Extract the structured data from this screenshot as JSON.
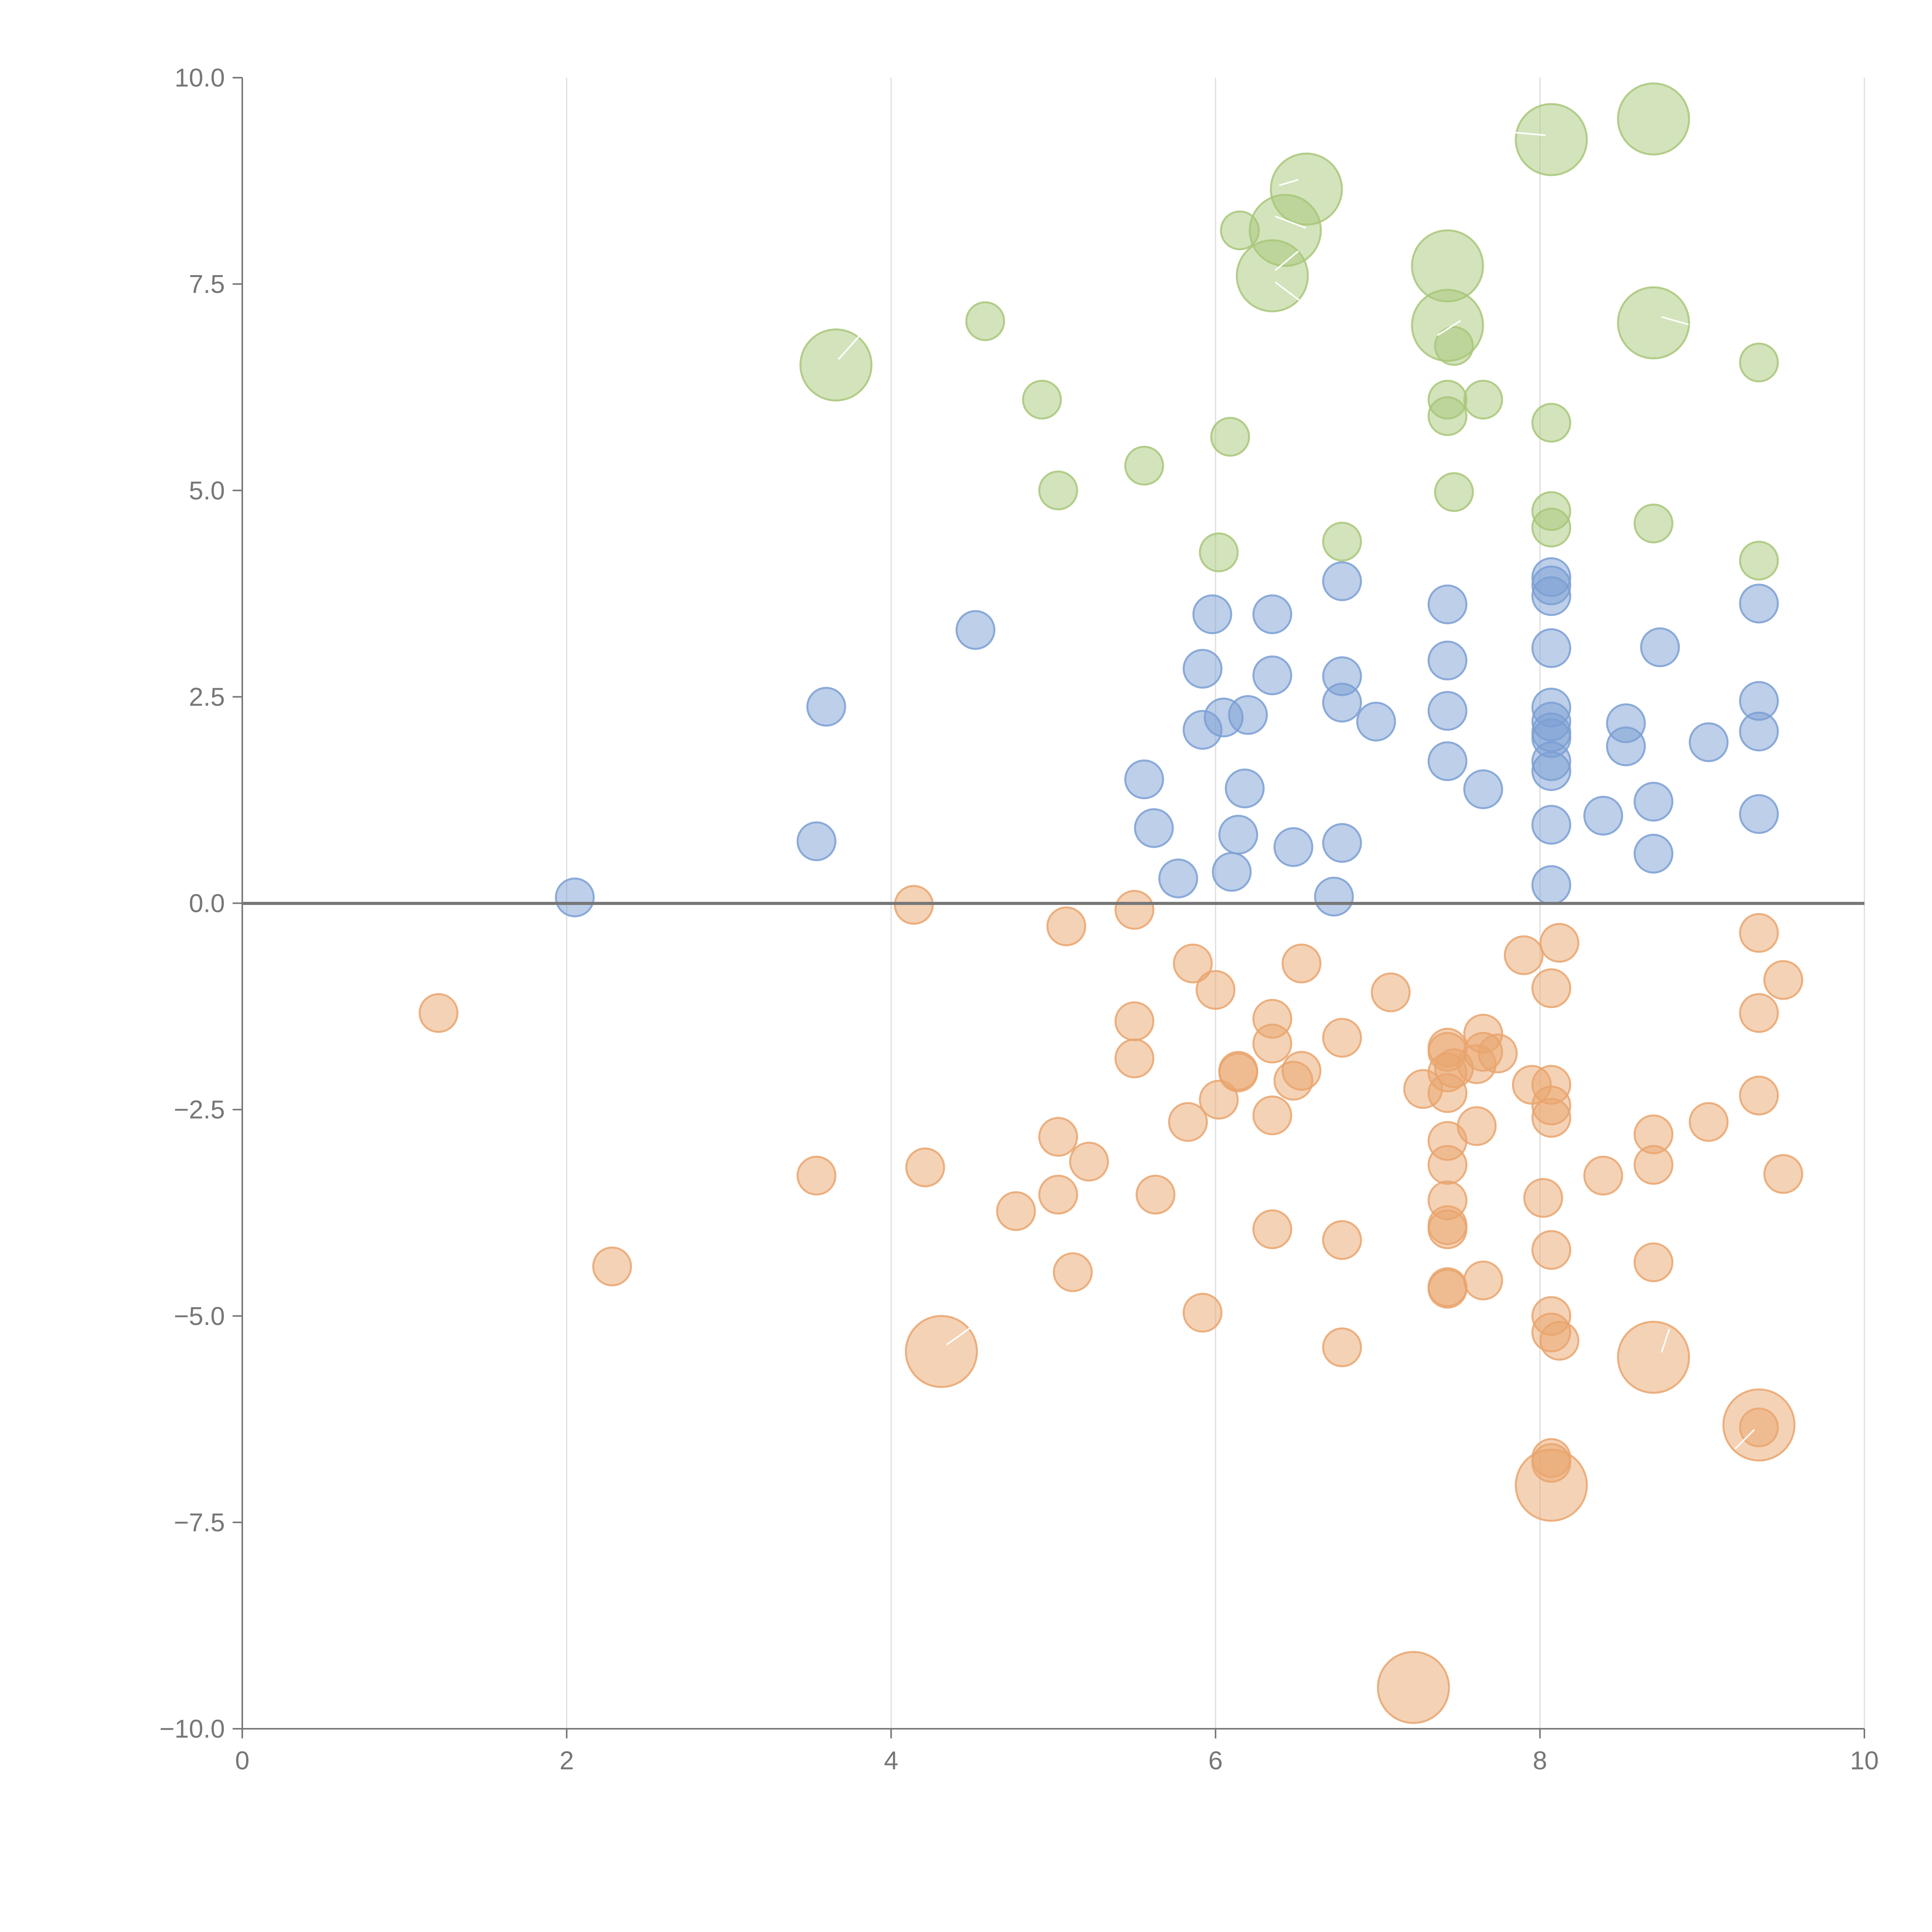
{
  "chart_data": {
    "type": "scatter",
    "title": "",
    "xlabel": "",
    "ylabel": "",
    "xlim": [
      0,
      10
    ],
    "ylim": [
      -10,
      10
    ],
    "x_ticks": [
      0,
      2,
      4,
      6,
      8,
      10
    ],
    "y_ticks": [
      -10,
      -7.5,
      -5,
      -2.5,
      0,
      2.5,
      5,
      7.5,
      10
    ],
    "x_tick_labels": [
      "0",
      "2",
      "4",
      "6",
      "8",
      "10"
    ],
    "y_tick_labels": [
      "−10.0",
      "−7.5",
      "−5.0",
      "−2.5",
      "0.0",
      "2.5",
      "5.0",
      "7.5",
      "10.0"
    ],
    "grid": "vertical",
    "colors": {
      "green": "#a8c779",
      "blue": "#7b9fd3",
      "orange": "#e9a56d",
      "axis": "#777777",
      "grid": "#dddddd",
      "zero_line": "#777777"
    },
    "series": [
      {
        "name": "green",
        "color": "#a8c779",
        "points": [
          [
            8.07,
            9.25,
            2
          ],
          [
            8.7,
            9.5,
            2
          ],
          [
            6.56,
            8.65,
            2
          ],
          [
            6.43,
            8.15,
            2
          ],
          [
            6.15,
            8.15,
            1
          ],
          [
            6.35,
            7.6,
            2
          ],
          [
            7.43,
            7.72,
            2
          ],
          [
            7.43,
            7.0,
            2
          ],
          [
            8.7,
            7.03,
            2
          ],
          [
            3.66,
            6.52,
            2
          ],
          [
            4.58,
            7.05,
            1
          ],
          [
            7.47,
            6.75,
            1
          ],
          [
            9.35,
            6.55,
            1
          ],
          [
            4.93,
            6.1,
            1
          ],
          [
            7.43,
            6.1,
            1
          ],
          [
            7.65,
            6.1,
            1
          ],
          [
            7.43,
            5.9,
            1
          ],
          [
            6.09,
            5.65,
            1
          ],
          [
            8.07,
            5.82,
            1
          ],
          [
            5.56,
            5.3,
            1
          ],
          [
            5.03,
            5.0,
            1
          ],
          [
            7.47,
            4.98,
            1
          ],
          [
            8.07,
            4.75,
            1
          ],
          [
            8.07,
            4.55,
            1
          ],
          [
            8.7,
            4.6,
            1
          ],
          [
            9.35,
            4.15,
            1
          ],
          [
            6.02,
            4.25,
            1
          ],
          [
            6.78,
            4.38,
            1
          ]
        ]
      },
      {
        "name": "blue",
        "color": "#7b9fd3",
        "points": [
          [
            2.05,
            0.07,
            1
          ],
          [
            3.54,
            0.75,
            1
          ],
          [
            3.6,
            2.38,
            1
          ],
          [
            4.52,
            3.31,
            1
          ],
          [
            5.56,
            1.5,
            1
          ],
          [
            5.62,
            0.91,
            1
          ],
          [
            5.77,
            0.3,
            1
          ],
          [
            5.92,
            2.84,
            1
          ],
          [
            5.98,
            3.5,
            1
          ],
          [
            5.92,
            2.1,
            1
          ],
          [
            6.05,
            2.25,
            1
          ],
          [
            6.2,
            2.28,
            1
          ],
          [
            6.18,
            1.39,
            1
          ],
          [
            6.14,
            0.83,
            1
          ],
          [
            6.1,
            0.38,
            1
          ],
          [
            6.35,
            3.5,
            1
          ],
          [
            6.35,
            2.76,
            1
          ],
          [
            6.48,
            0.68,
            1
          ],
          [
            6.78,
            3.9,
            1
          ],
          [
            6.78,
            2.75,
            1
          ],
          [
            6.78,
            2.43,
            1
          ],
          [
            6.78,
            0.73,
            1
          ],
          [
            6.73,
            0.08,
            1
          ],
          [
            6.99,
            2.2,
            1
          ],
          [
            7.43,
            3.62,
            1
          ],
          [
            7.43,
            2.94,
            1
          ],
          [
            7.43,
            2.33,
            1
          ],
          [
            7.43,
            1.72,
            1
          ],
          [
            7.65,
            1.38,
            1
          ],
          [
            8.07,
            3.95,
            1
          ],
          [
            8.07,
            3.85,
            1
          ],
          [
            8.07,
            3.72,
            1
          ],
          [
            8.07,
            3.09,
            1
          ],
          [
            8.07,
            2.37,
            1
          ],
          [
            8.07,
            2.2,
            1
          ],
          [
            8.07,
            2.07,
            1
          ],
          [
            8.07,
            2.0,
            1
          ],
          [
            8.07,
            1.72,
            1
          ],
          [
            8.07,
            1.6,
            1
          ],
          [
            8.07,
            0.95,
            1
          ],
          [
            8.07,
            0.22,
            1
          ],
          [
            8.39,
            1.06,
            1
          ],
          [
            8.53,
            2.18,
            1
          ],
          [
            8.53,
            1.9,
            1
          ],
          [
            8.74,
            3.1,
            1
          ],
          [
            8.7,
            1.23,
            1
          ],
          [
            8.7,
            0.6,
            1
          ],
          [
            9.04,
            1.95,
            1
          ],
          [
            9.35,
            3.63,
            1
          ],
          [
            9.35,
            2.45,
            1
          ],
          [
            9.35,
            2.08,
            1
          ],
          [
            9.35,
            1.08,
            1
          ]
        ]
      },
      {
        "name": "orange",
        "color": "#e9a56d",
        "points": [
          [
            1.21,
            -1.33,
            1
          ],
          [
            2.28,
            -4.4,
            1
          ],
          [
            3.54,
            -3.3,
            1
          ],
          [
            4.14,
            -0.02,
            1
          ],
          [
            4.21,
            -3.2,
            1
          ],
          [
            4.31,
            -5.43,
            2
          ],
          [
            4.77,
            -3.73,
            1
          ],
          [
            5.03,
            -2.83,
            1
          ],
          [
            5.03,
            -3.53,
            1
          ],
          [
            5.08,
            -0.28,
            1
          ],
          [
            5.12,
            -4.47,
            1
          ],
          [
            5.22,
            -3.13,
            1
          ],
          [
            5.5,
            -0.08,
            1
          ],
          [
            5.5,
            -1.43,
            1
          ],
          [
            5.5,
            -1.88,
            1
          ],
          [
            5.63,
            -3.53,
            1
          ],
          [
            5.86,
            -0.73,
            1
          ],
          [
            5.83,
            -2.65,
            1
          ],
          [
            5.92,
            -4.96,
            1
          ],
          [
            6.0,
            -1.05,
            1
          ],
          [
            6.02,
            -2.38,
            1
          ],
          [
            6.14,
            -2.03,
            1
          ],
          [
            6.14,
            -2.05,
            1
          ],
          [
            6.35,
            -1.4,
            1
          ],
          [
            6.35,
            -1.7,
            1
          ],
          [
            6.35,
            -2.57,
            1
          ],
          [
            6.35,
            -3.95,
            1
          ],
          [
            6.48,
            -2.15,
            1
          ],
          [
            6.53,
            -0.73,
            1
          ],
          [
            6.53,
            -2.03,
            1
          ],
          [
            6.78,
            -1.63,
            1
          ],
          [
            6.78,
            -4.08,
            1
          ],
          [
            6.78,
            -5.38,
            1
          ],
          [
            7.08,
            -1.08,
            1
          ],
          [
            7.28,
            -2.25,
            1
          ],
          [
            7.22,
            -9.5,
            2
          ],
          [
            7.43,
            -1.75,
            1
          ],
          [
            7.43,
            -1.8,
            1
          ],
          [
            7.43,
            -2.05,
            1
          ],
          [
            7.43,
            -2.3,
            1
          ],
          [
            7.43,
            -2.88,
            1
          ],
          [
            7.43,
            -3.17,
            1
          ],
          [
            7.43,
            -3.6,
            1
          ],
          [
            7.43,
            -3.9,
            1
          ],
          [
            7.43,
            -3.95,
            1
          ],
          [
            7.43,
            -4.65,
            1
          ],
          [
            7.43,
            -4.67,
            1
          ],
          [
            7.47,
            -2.0,
            1
          ],
          [
            7.61,
            -1.95,
            1
          ],
          [
            7.61,
            -2.7,
            1
          ],
          [
            7.65,
            -1.58,
            1
          ],
          [
            7.65,
            -1.8,
            1
          ],
          [
            7.65,
            -4.57,
            1
          ],
          [
            7.74,
            -1.82,
            1
          ],
          [
            7.9,
            -0.63,
            1
          ],
          [
            7.95,
            -2.2,
            1
          ],
          [
            8.02,
            -3.57,
            1
          ],
          [
            8.07,
            -1.03,
            1
          ],
          [
            8.07,
            -2.2,
            1
          ],
          [
            8.07,
            -2.45,
            1
          ],
          [
            8.07,
            -2.6,
            1
          ],
          [
            8.07,
            -4.2,
            1
          ],
          [
            8.07,
            -5.0,
            1
          ],
          [
            8.07,
            -5.2,
            1
          ],
          [
            8.07,
            -6.72,
            1
          ],
          [
            8.07,
            -6.78,
            1
          ],
          [
            8.07,
            -7.05,
            2
          ],
          [
            8.12,
            -0.48,
            1
          ],
          [
            8.12,
            -5.3,
            1
          ],
          [
            8.39,
            -3.3,
            1
          ],
          [
            8.7,
            -2.8,
            1
          ],
          [
            8.7,
            -3.17,
            1
          ],
          [
            8.7,
            -4.35,
            1
          ],
          [
            8.7,
            -5.5,
            2
          ],
          [
            9.04,
            -2.65,
            1
          ],
          [
            9.35,
            -0.36,
            1
          ],
          [
            9.35,
            -1.33,
            1
          ],
          [
            9.35,
            -2.33,
            1
          ],
          [
            9.35,
            -6.35,
            1
          ],
          [
            9.35,
            -6.32,
            2
          ],
          [
            9.5,
            -0.93,
            1
          ],
          [
            9.5,
            -3.28,
            1
          ]
        ]
      }
    ]
  }
}
